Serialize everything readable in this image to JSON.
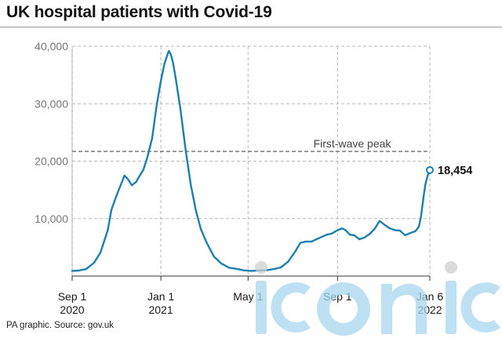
{
  "title": "UK hospital patients with Covid-19",
  "source": "PA graphic. Source: gov.uk",
  "watermark": "iconic",
  "colors": {
    "line": "#1c7fb0",
    "grid": "#b9b9b9",
    "reference": "#6e6e6e",
    "watermark": "#9fd4ee"
  },
  "chart_data": {
    "type": "line",
    "title": "UK hospital patients with Covid-19",
    "ylim": [
      0,
      40000
    ],
    "yticks": [
      10000,
      20000,
      30000,
      40000
    ],
    "ytick_labels": [
      "10,000",
      "20,000",
      "30,000",
      "40,000"
    ],
    "x_domain": [
      "2020-09-01",
      "2022-01-06"
    ],
    "xticks": [
      {
        "date": "2020-09-01",
        "line1": "Sep 1",
        "line2": "2020"
      },
      {
        "date": "2021-01-01",
        "line1": "Jan 1",
        "line2": "2021"
      },
      {
        "date": "2021-05-01",
        "line1": "May 1",
        "line2": ""
      },
      {
        "date": "2021-09-01",
        "line1": "Sep 1",
        "line2": ""
      },
      {
        "date": "2022-01-06",
        "line1": "Jan 6",
        "line2": "2022"
      }
    ],
    "grid": true,
    "reference_line": {
      "label": "First-wave peak",
      "value": 21700
    },
    "end_label": "18,454",
    "series": [
      {
        "x": [
          "2020-09-01",
          "2020-09-10",
          "2020-09-20",
          "2020-10-01",
          "2020-10-10",
          "2020-10-20",
          "2020-10-25",
          "2020-11-01",
          "2020-11-08",
          "2020-11-12",
          "2020-11-17",
          "2020-11-22",
          "2020-11-28",
          "2020-12-03",
          "2020-12-08",
          "2020-12-13",
          "2020-12-20",
          "2020-12-26",
          "2021-01-01",
          "2021-01-06",
          "2021-01-10",
          "2021-01-12",
          "2021-01-15",
          "2021-01-18",
          "2021-01-22",
          "2021-01-28",
          "2021-02-04",
          "2021-02-11",
          "2021-02-18",
          "2021-02-25",
          "2021-03-05",
          "2021-03-15",
          "2021-03-25",
          "2021-04-05",
          "2021-04-15",
          "2021-04-25",
          "2021-05-05",
          "2021-05-15",
          "2021-05-25",
          "2021-06-05",
          "2021-06-15",
          "2021-06-25",
          "2021-07-05",
          "2021-07-12",
          "2021-07-20",
          "2021-07-27",
          "2021-08-03",
          "2021-08-10",
          "2021-08-17",
          "2021-08-24",
          "2021-08-31",
          "2021-09-07",
          "2021-09-12",
          "2021-09-18",
          "2021-09-24",
          "2021-10-01",
          "2021-10-08",
          "2021-10-15",
          "2021-10-22",
          "2021-10-29",
          "2021-11-05",
          "2021-11-12",
          "2021-11-19",
          "2021-11-26",
          "2021-12-03",
          "2021-12-10",
          "2021-12-17",
          "2021-12-22",
          "2021-12-25",
          "2021-12-28",
          "2021-12-31",
          "2022-01-03",
          "2022-01-06"
        ],
        "y": [
          900,
          950,
          1200,
          2300,
          4100,
          8000,
          11500,
          14000,
          16200,
          17500,
          16800,
          15800,
          16400,
          17500,
          18500,
          20500,
          24000,
          29500,
          34000,
          37000,
          38500,
          39200,
          38500,
          37000,
          34000,
          29000,
          22000,
          16000,
          11500,
          8200,
          5800,
          3400,
          2200,
          1450,
          1250,
          1000,
          900,
          950,
          1000,
          1200,
          1500,
          2500,
          4300,
          5800,
          6000,
          6000,
          6400,
          6800,
          7200,
          7400,
          7900,
          8300,
          8000,
          7200,
          7100,
          6400,
          6700,
          7300,
          8200,
          9600,
          8900,
          8300,
          8000,
          7900,
          7100,
          7500,
          7800,
          8600,
          10500,
          13500,
          16000,
          17500,
          18454
        ]
      }
    ]
  }
}
